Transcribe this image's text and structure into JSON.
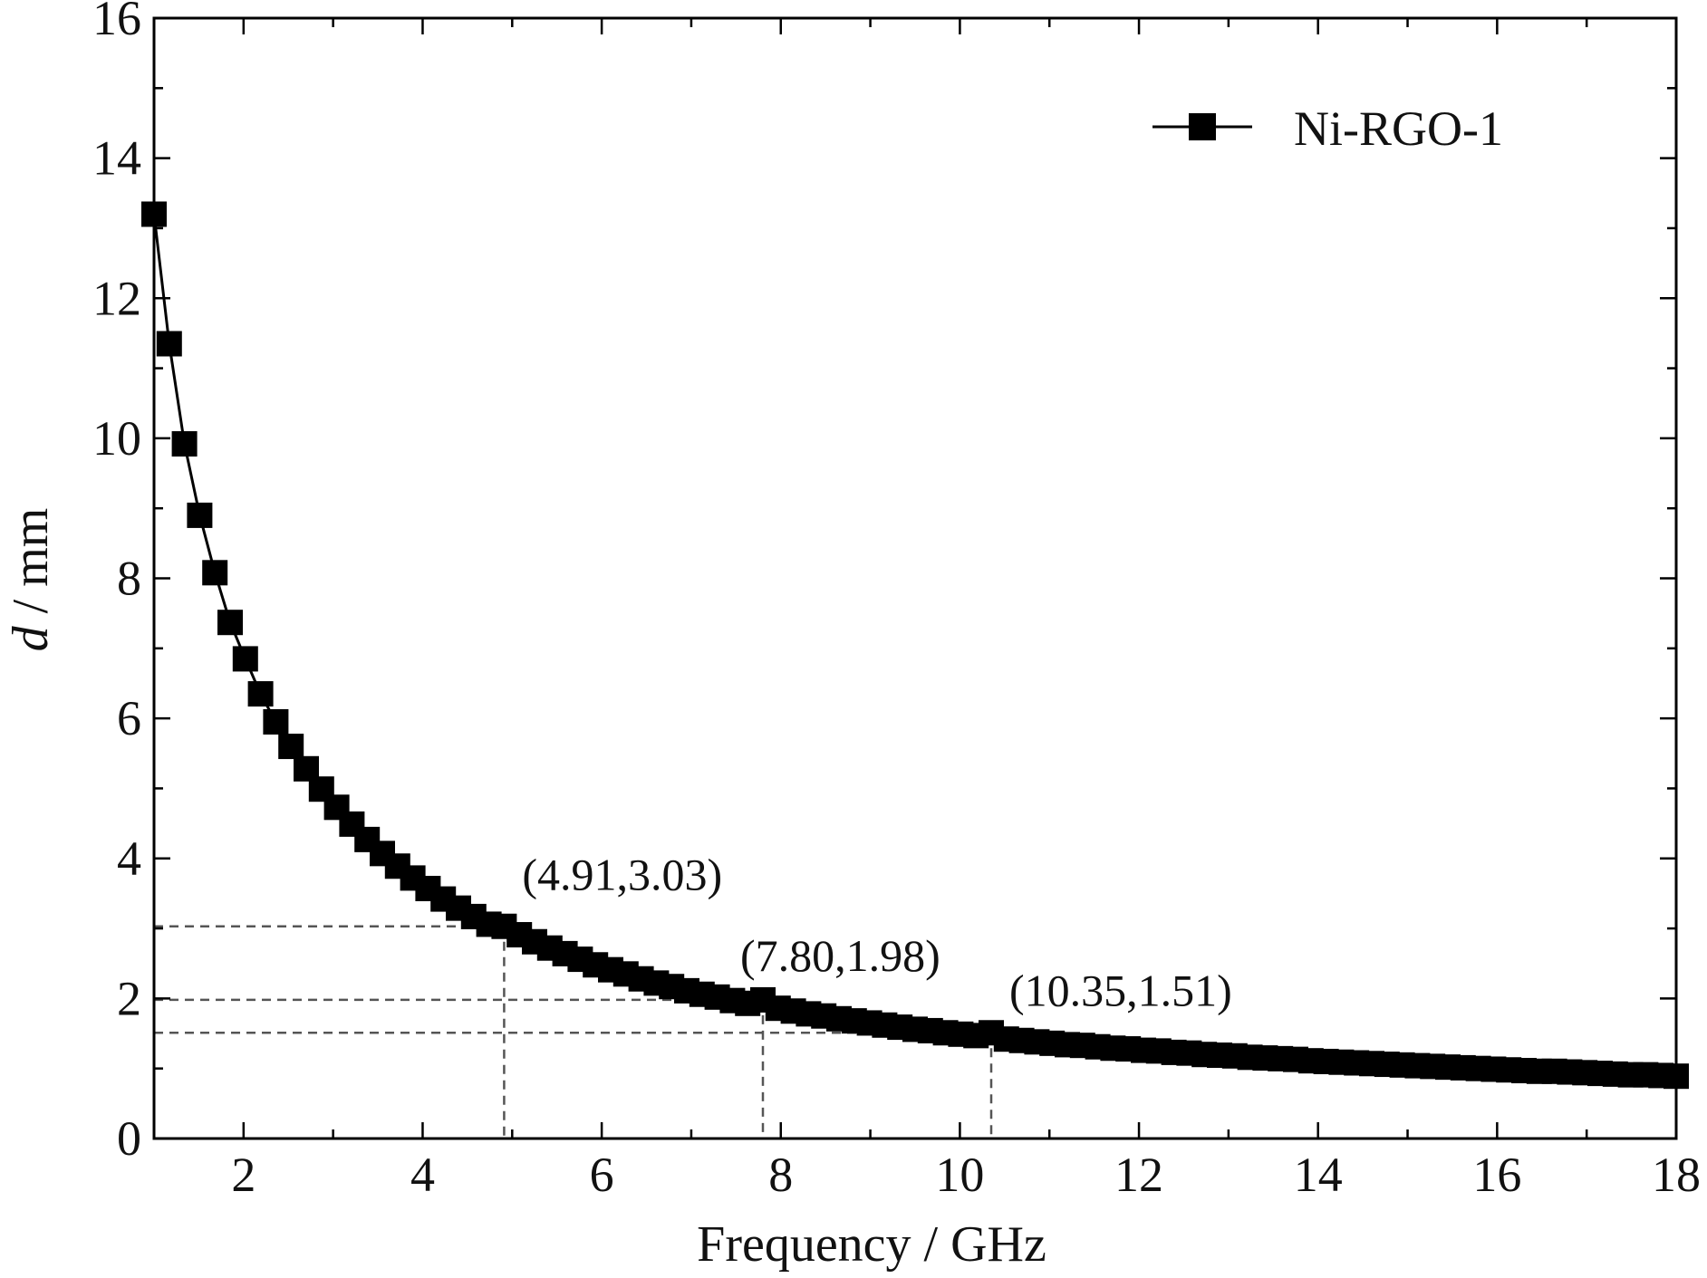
{
  "chart_data": {
    "type": "line",
    "title": "",
    "xlabel": "Frequency / GHz",
    "ylabel_italic": "d",
    "ylabel_rest": " / mm",
    "xlim": [
      1,
      18
    ],
    "ylim": [
      0,
      16
    ],
    "x_ticks": [
      2,
      4,
      6,
      8,
      10,
      12,
      14,
      16,
      18
    ],
    "x_tick_labels": [
      "2",
      "4",
      "6",
      "8",
      "10",
      "12",
      "14",
      "16",
      "18"
    ],
    "y_ticks": [
      0,
      2,
      4,
      6,
      8,
      10,
      12,
      14,
      16
    ],
    "y_tick_labels": [
      "0",
      "2",
      "4",
      "6",
      "8",
      "10",
      "12",
      "14",
      "16"
    ],
    "grid": false,
    "legend_position": "top-right",
    "series": [
      {
        "name": "Ni-RGO-1",
        "color": "#000000",
        "marker": "square",
        "x": [
          1.0,
          1.17,
          1.34,
          1.51,
          1.68,
          1.85,
          2.02,
          2.19,
          2.36,
          2.53,
          2.7,
          2.87,
          3.04,
          3.21,
          3.38,
          3.55,
          3.72,
          3.89,
          4.06,
          4.23,
          4.4,
          4.57,
          4.74,
          4.91,
          5.08,
          5.25,
          5.42,
          5.59,
          5.76,
          5.93,
          6.1,
          6.27,
          6.44,
          6.61,
          6.78,
          6.95,
          7.12,
          7.29,
          7.46,
          7.63,
          7.8,
          7.97,
          8.14,
          8.31,
          8.48,
          8.65,
          8.82,
          8.99,
          9.16,
          9.33,
          9.5,
          9.67,
          9.84,
          10.01,
          10.18,
          10.35,
          10.52,
          10.69,
          10.86,
          11.03,
          11.2,
          11.37,
          11.54,
          11.71,
          11.88,
          12.05,
          12.22,
          12.39,
          12.56,
          12.73,
          12.9,
          13.07,
          13.24,
          13.41,
          13.58,
          13.75,
          13.92,
          14.09,
          14.26,
          14.43,
          14.6,
          14.77,
          14.94,
          15.11,
          15.28,
          15.45,
          15.62,
          15.79,
          15.96,
          16.13,
          16.3,
          16.47,
          16.64,
          16.81,
          16.98,
          17.15,
          17.32,
          17.49,
          17.66,
          17.83,
          18.0
        ],
        "y": [
          13.2,
          11.35,
          9.92,
          8.9,
          8.08,
          7.37,
          6.85,
          6.35,
          5.95,
          5.6,
          5.28,
          4.99,
          4.73,
          4.49,
          4.27,
          4.07,
          3.89,
          3.72,
          3.57,
          3.42,
          3.29,
          3.17,
          3.06,
          3.03,
          2.91,
          2.81,
          2.72,
          2.64,
          2.56,
          2.48,
          2.41,
          2.35,
          2.28,
          2.22,
          2.17,
          2.11,
          2.06,
          2.02,
          1.97,
          1.93,
          1.98,
          1.86,
          1.82,
          1.78,
          1.75,
          1.71,
          1.68,
          1.65,
          1.62,
          1.59,
          1.56,
          1.54,
          1.51,
          1.49,
          1.47,
          1.51,
          1.42,
          1.4,
          1.38,
          1.36,
          1.34,
          1.33,
          1.31,
          1.29,
          1.28,
          1.26,
          1.25,
          1.23,
          1.22,
          1.2,
          1.19,
          1.18,
          1.16,
          1.15,
          1.14,
          1.13,
          1.11,
          1.1,
          1.09,
          1.08,
          1.07,
          1.06,
          1.05,
          1.04,
          1.03,
          1.02,
          1.01,
          1.0,
          0.99,
          0.98,
          0.97,
          0.96,
          0.96,
          0.95,
          0.94,
          0.93,
          0.92,
          0.91,
          0.91,
          0.9,
          0.89
        ]
      }
    ],
    "annotations": [
      {
        "x": 4.91,
        "y": 3.03,
        "text": "(4.91,3.03)"
      },
      {
        "x": 7.8,
        "y": 1.98,
        "text": "(7.80,1.98)"
      },
      {
        "x": 10.35,
        "y": 1.51,
        "text": "(10.35,1.51)"
      }
    ]
  }
}
